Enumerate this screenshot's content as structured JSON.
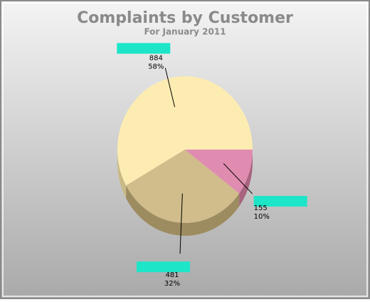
{
  "chart_data": {
    "type": "pie3d",
    "title": "Complaints by Customer",
    "subtitle": "For January 2011",
    "values": [
      884,
      481,
      155
    ],
    "shares": [
      58,
      32,
      10
    ],
    "share_labels": [
      "58%",
      "32%",
      "10%"
    ],
    "colors": [
      "#fdecb2",
      "#d0bd8b",
      "#e08cb1"
    ],
    "side_colors": [
      "#c9b985",
      "#9d8c60",
      "#a8647f"
    ]
  }
}
